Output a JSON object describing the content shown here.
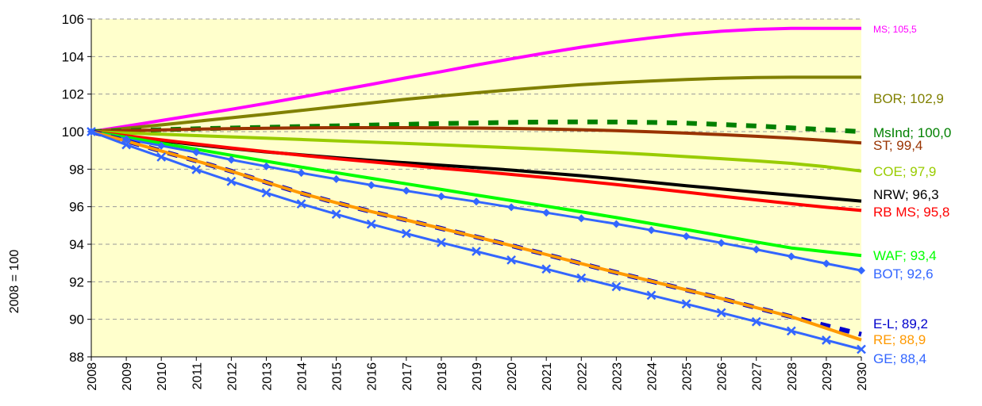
{
  "chart_data": {
    "type": "line",
    "title": "",
    "xlabel": "",
    "ylabel": "2008 = 100",
    "ylim": [
      88,
      106
    ],
    "yticks": [
      88,
      90,
      92,
      94,
      96,
      98,
      100,
      102,
      104,
      106
    ],
    "x": [
      "2008",
      "2009",
      "2010",
      "2011",
      "2012",
      "2013",
      "2014",
      "2015",
      "2016",
      "2017",
      "2018",
      "2019",
      "2020",
      "2021",
      "2022",
      "2023",
      "2024",
      "2025",
      "2026",
      "2027",
      "2028",
      "2029",
      "2030"
    ],
    "plot_background": "#FFFFCC",
    "grid": "horizontal-dashed",
    "legend": "end-labels-right",
    "series": [
      {
        "name": "MS",
        "end_label": "MS; 105,5",
        "color": "#FF00FF",
        "style": "solid",
        "values": [
          100,
          100.29,
          100.59,
          100.89,
          101.19,
          101.51,
          101.84,
          102.18,
          102.52,
          102.87,
          103.2,
          103.55,
          103.88,
          104.2,
          104.5,
          104.77,
          105.0,
          105.2,
          105.35,
          105.45,
          105.5,
          105.5,
          105.5
        ]
      },
      {
        "name": "BOR",
        "end_label": "BOR; 102,9",
        "color": "#808000",
        "style": "solid",
        "values": [
          100,
          100.18,
          100.36,
          100.55,
          100.74,
          100.93,
          101.13,
          101.33,
          101.53,
          101.73,
          101.9,
          102.07,
          102.23,
          102.37,
          102.5,
          102.61,
          102.7,
          102.78,
          102.84,
          102.88,
          102.9,
          102.9,
          102.9
        ]
      },
      {
        "name": "MsInd",
        "end_label": "MsInd; 100,0",
        "color": "#008000",
        "style": "dashed",
        "values": [
          100,
          100.05,
          100.1,
          100.15,
          100.19,
          100.23,
          100.27,
          100.31,
          100.35,
          100.39,
          100.43,
          100.46,
          100.49,
          100.51,
          100.52,
          100.51,
          100.49,
          100.45,
          100.38,
          100.3,
          100.2,
          100.1,
          100.0
        ]
      },
      {
        "name": "ST",
        "end_label": "ST; 99,4",
        "color": "#993300",
        "style": "solid",
        "values": [
          100,
          100.05,
          100.09,
          100.13,
          100.16,
          100.18,
          100.2,
          100.21,
          100.21,
          100.21,
          100.2,
          100.19,
          100.17,
          100.14,
          100.1,
          100.05,
          99.99,
          99.92,
          99.84,
          99.75,
          99.65,
          99.53,
          99.4
        ]
      },
      {
        "name": "COE",
        "end_label": "COE; 97,9",
        "color": "#99CC00",
        "style": "solid",
        "values": [
          100,
          99.93,
          99.86,
          99.79,
          99.72,
          99.65,
          99.58,
          99.51,
          99.44,
          99.37,
          99.3,
          99.22,
          99.14,
          99.06,
          98.97,
          98.88,
          98.78,
          98.67,
          98.56,
          98.44,
          98.31,
          98.13,
          97.9
        ]
      },
      {
        "name": "NRW",
        "end_label": "NRW; 96,3",
        "color": "#000000",
        "style": "solid",
        "values": [
          100,
          99.75,
          99.52,
          99.3,
          99.1,
          98.92,
          98.76,
          98.61,
          98.47,
          98.34,
          98.21,
          98.08,
          97.95,
          97.8,
          97.65,
          97.48,
          97.3,
          97.12,
          96.95,
          96.78,
          96.62,
          96.46,
          96.3
        ]
      },
      {
        "name": "RB MS",
        "end_label": "RB MS; 95,8",
        "color": "#FF0000",
        "style": "solid",
        "values": [
          100,
          99.78,
          99.56,
          99.34,
          99.13,
          98.93,
          98.74,
          98.56,
          98.39,
          98.22,
          98.05,
          97.89,
          97.72,
          97.55,
          97.37,
          97.18,
          96.98,
          96.77,
          96.56,
          96.36,
          96.16,
          95.97,
          95.8
        ]
      },
      {
        "name": "WAF",
        "end_label": "WAF; 93,4",
        "color": "#00FF00",
        "style": "solid",
        "values": [
          100,
          99.7,
          99.38,
          99.06,
          98.74,
          98.42,
          98.11,
          97.81,
          97.51,
          97.22,
          96.92,
          96.62,
          96.33,
          96.03,
          95.73,
          95.42,
          95.1,
          94.78,
          94.45,
          94.12,
          93.8,
          93.6,
          93.4
        ]
      },
      {
        "name": "BOT",
        "end_label": "BOT; 92,6",
        "color": "#3366FF",
        "style": "solid-diamond",
        "values": [
          100,
          99.6,
          99.25,
          98.9,
          98.5,
          98.15,
          97.8,
          97.47,
          97.15,
          96.85,
          96.55,
          96.27,
          95.97,
          95.68,
          95.38,
          95.08,
          94.75,
          94.42,
          94.07,
          93.72,
          93.35,
          92.97,
          92.6
        ]
      },
      {
        "name": "E-L",
        "end_label": "E-L; 89,2",
        "color": "#0000CC",
        "style": "dashed",
        "values": [
          100,
          99.5,
          98.97,
          98.44,
          97.89,
          97.3,
          96.72,
          96.21,
          95.74,
          95.29,
          94.84,
          94.39,
          93.93,
          93.45,
          92.97,
          92.49,
          92.03,
          91.57,
          91.11,
          90.62,
          90.14,
          89.66,
          89.2
        ]
      },
      {
        "name": "RE",
        "end_label": "RE; 88,9",
        "color": "#FF9900",
        "style": "solid",
        "values": [
          100,
          99.5,
          98.97,
          98.44,
          97.89,
          97.3,
          96.72,
          96.21,
          95.74,
          95.29,
          94.84,
          94.39,
          93.93,
          93.45,
          92.97,
          92.49,
          92.03,
          91.57,
          91.11,
          90.62,
          90.14,
          89.52,
          88.9
        ]
      },
      {
        "name": "GE",
        "end_label": "GE; 88,4",
        "color": "#3366FF",
        "style": "solid-x",
        "values": [
          100,
          99.3,
          98.65,
          97.98,
          97.35,
          96.74,
          96.15,
          95.6,
          95.07,
          94.57,
          94.09,
          93.62,
          93.16,
          92.68,
          92.2,
          91.74,
          91.28,
          90.82,
          90.35,
          89.87,
          89.38,
          88.89,
          88.4
        ]
      }
    ]
  }
}
